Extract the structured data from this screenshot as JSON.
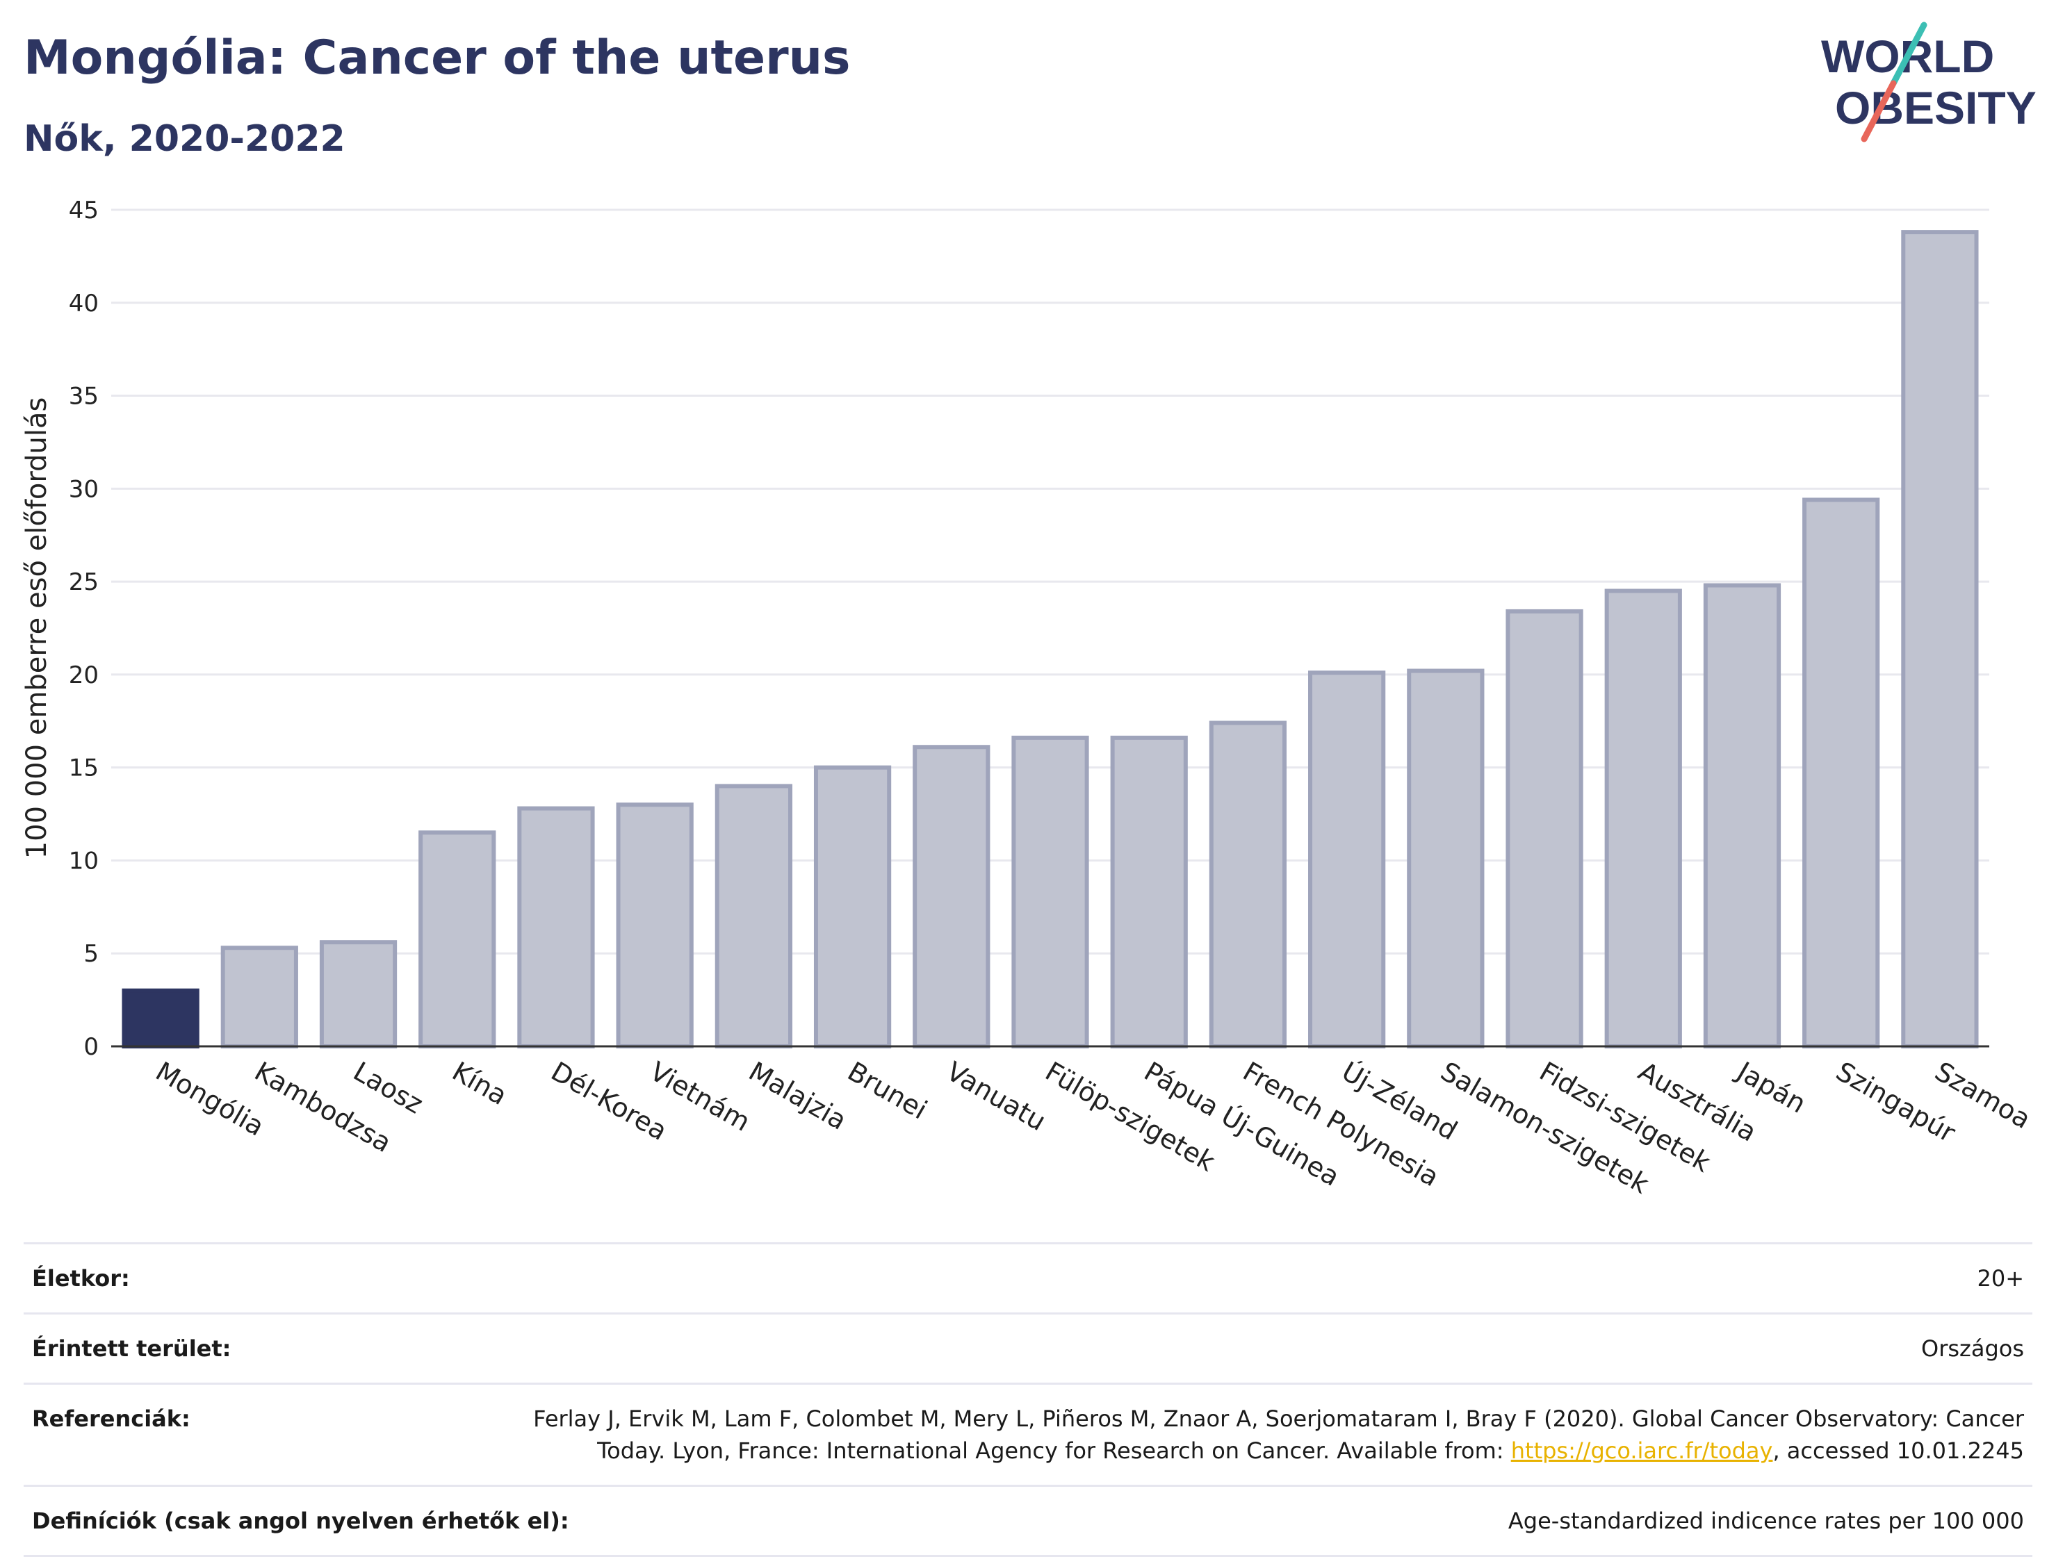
{
  "header": {
    "title": "Mongólia: Cancer of the uterus",
    "subtitle": "Nők, 2020-2022"
  },
  "logo": {
    "line1": "WORLD",
    "line2": "OBESITY",
    "accent_colors": [
      "#3cbfb4",
      "#e8665a"
    ]
  },
  "colors": {
    "highlight": "#2d3561",
    "bar": "#c0c3d0",
    "bar_border": "#9fa4bb",
    "gridline": "#e8e8ee",
    "axis": "#333333",
    "link": "#e8b200"
  },
  "chart_data": {
    "type": "bar",
    "title": "Mongólia: Cancer of the uterus",
    "subtitle": "Nők, 2020-2022",
    "xlabel": "",
    "ylabel": "100 000 emberre eső előfordulás",
    "ylim": [
      0,
      45
    ],
    "yticks": [
      0,
      5,
      10,
      15,
      20,
      25,
      30,
      35,
      40,
      45
    ],
    "grid": true,
    "highlight_category": "Mongólia",
    "categories": [
      "Mongólia",
      "Kambodzsa",
      "Laosz",
      "Kína",
      "Dél-Korea",
      "Vietnám",
      "Malajzia",
      "Brunei",
      "Vanuatu",
      "Fülöp-szigetek",
      "Pápua Új-Guinea",
      "French Polynesia",
      "Új-Zéland",
      "Salamon-szigetek",
      "Fidzsi-szigetek",
      "Ausztrália",
      "Japán",
      "Szingapúr",
      "Szamoa"
    ],
    "values": [
      3.0,
      5.3,
      5.6,
      11.5,
      12.8,
      13.0,
      14.0,
      15.0,
      16.1,
      16.6,
      16.6,
      17.4,
      20.1,
      20.2,
      23.4,
      24.5,
      24.8,
      29.4,
      43.8
    ]
  },
  "meta": [
    {
      "key": "Életkor:",
      "value": "20+"
    },
    {
      "key": "Érintett terület:",
      "value": "Országos"
    },
    {
      "key": "Referenciák:",
      "value_before": "Ferlay J, Ervik M, Lam F, Colombet M, Mery L, Piñeros M, Znaor A, Soerjomataram I, Bray F (2020). Global Cancer Observatory: Cancer Today. Lyon, France: International Agency for Research on Cancer. Available from: ",
      "link": "https://gco.iarc.fr/today",
      "value_after": ", accessed 10.01.2245"
    },
    {
      "key": "Definíciók (csak angol nyelven érhetők el):",
      "value": "Age-standardized indicence rates per 100 000"
    }
  ]
}
